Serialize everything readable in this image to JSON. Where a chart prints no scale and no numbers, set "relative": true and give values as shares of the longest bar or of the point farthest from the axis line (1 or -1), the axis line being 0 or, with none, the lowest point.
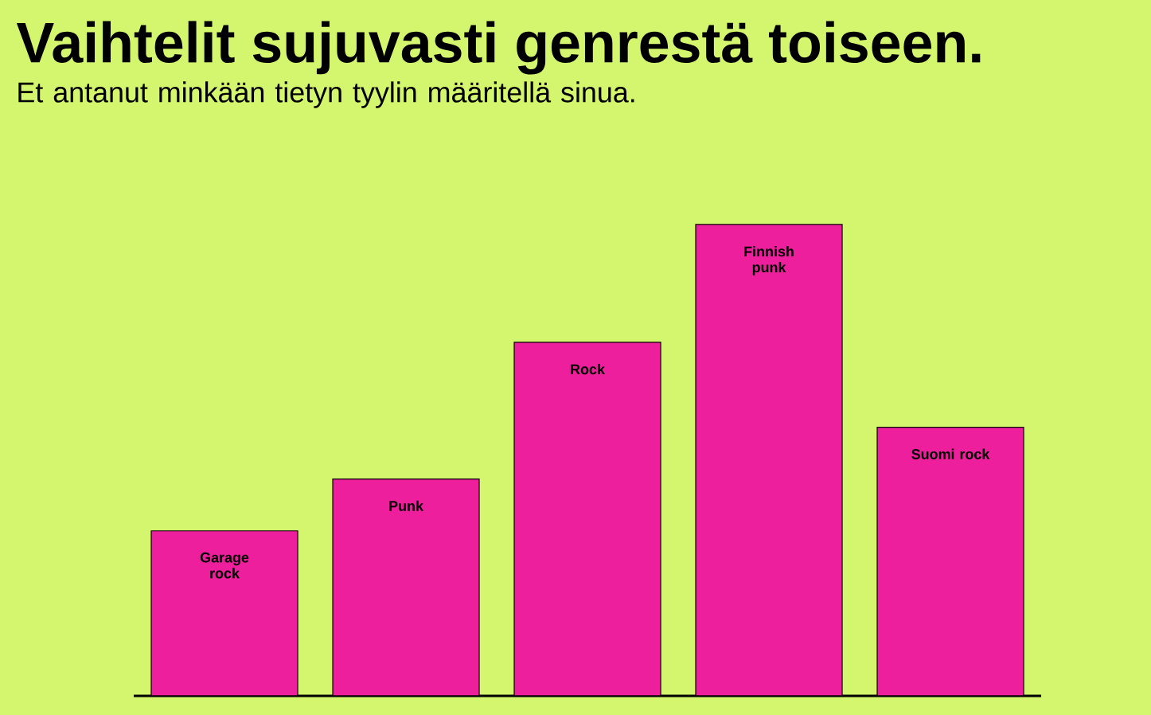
{
  "chart_data": {
    "type": "bar",
    "title": "Vaihtelit sujuvasti genrestä toiseen.",
    "subtitle": "Et antanut minkään tietyn tyylin määritellä sinua.",
    "categories": [
      "Garage rock",
      "Punk",
      "Rock",
      "Finnish punk",
      "Suomi rock"
    ],
    "values": [
      0.35,
      0.46,
      0.75,
      1,
      0.57
    ],
    "color": "#ee1f9c",
    "relative": true
  }
}
